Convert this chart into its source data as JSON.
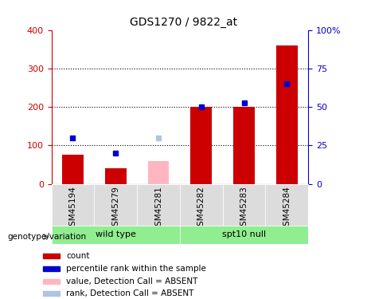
{
  "title": "GDS1270 / 9822_at",
  "samples": [
    "GSM45194",
    "GSM45279",
    "GSM45281",
    "GSM45282",
    "GSM45283",
    "GSM45284"
  ],
  "count_values": [
    75,
    40,
    null,
    200,
    200,
    360
  ],
  "rank_values": [
    120,
    80,
    null,
    200,
    210,
    260
  ],
  "absent_count": [
    null,
    null,
    60,
    null,
    null,
    null
  ],
  "absent_rank": [
    null,
    null,
    120,
    null,
    null,
    null
  ],
  "bar_color_present": "#CC0000",
  "bar_color_absent": "#FFB6C1",
  "rank_color_present": "#0000CC",
  "rank_color_absent": "#B0C4DE",
  "ylim_left": [
    0,
    400
  ],
  "ylim_right": [
    0,
    100
  ],
  "yticks_left": [
    0,
    100,
    200,
    300,
    400
  ],
  "yticks_right": [
    0,
    25,
    50,
    75,
    100
  ],
  "ytick_labels_right": [
    "0",
    "25",
    "50",
    "75",
    "100%"
  ],
  "bar_width": 0.5,
  "legend_items": [
    {
      "label": "count",
      "color": "#CC0000"
    },
    {
      "label": "percentile rank within the sample",
      "color": "#0000CC"
    },
    {
      "label": "value, Detection Call = ABSENT",
      "color": "#FFB6C1"
    },
    {
      "label": "rank, Detection Call = ABSENT",
      "color": "#B0C4DE"
    }
  ],
  "group_wild_label": "wild type",
  "group_spt_label": "spt10 null",
  "group_color": "#90EE90",
  "genotype_label": "genotype/variation"
}
